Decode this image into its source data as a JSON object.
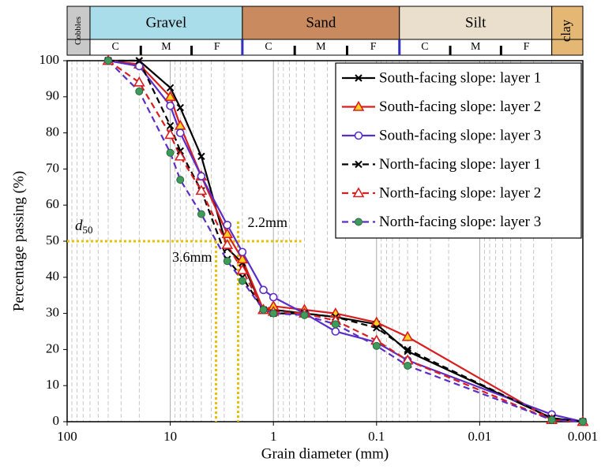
{
  "chart_data": {
    "type": "line",
    "x_label": "Grain diameter (mm)",
    "y_label": "Percentage passing (%)",
    "x": [
      40,
      20,
      10,
      8,
      5,
      2.8,
      2,
      1.25,
      1,
      0.5,
      0.25,
      0.1,
      0.05,
      0.002,
      0.001
    ],
    "series": [
      {
        "name": "South-facing slope: layer 1",
        "color": "#000000",
        "marker": "cross",
        "marker_fill": "none",
        "dashed": false,
        "values": [
          100,
          100,
          92.5,
          87,
          73.5,
          48,
          44,
          31,
          31,
          30,
          29,
          27,
          19.5,
          1,
          0
        ]
      },
      {
        "name": "South-facing slope: layer 2",
        "color": "#d81e1e",
        "marker": "triangle",
        "marker_fill": "#ffd21f",
        "dashed": false,
        "values": [
          100,
          99,
          90,
          82,
          68,
          52,
          45,
          31,
          32,
          31,
          30,
          27.5,
          23.5,
          0.5,
          0
        ]
      },
      {
        "name": "South-facing slope: layer 3",
        "color": "#5a2dc8",
        "marker": "circle",
        "marker_fill": "#ffffff",
        "dashed": false,
        "values": [
          100,
          98.5,
          87.5,
          80,
          68,
          54.5,
          47,
          36.5,
          34.5,
          30,
          25,
          22,
          17,
          2,
          0
        ]
      },
      {
        "name": "North-facing slope: layer 1",
        "color": "#000000",
        "marker": "cross",
        "marker_fill": "none",
        "dashed": true,
        "values": [
          100,
          100,
          82,
          75,
          64,
          45,
          40,
          31,
          30,
          30,
          29,
          26,
          20,
          1,
          0
        ]
      },
      {
        "name": "North-facing slope: layer 2",
        "color": "#d81e1e",
        "marker": "triangle",
        "marker_fill": "#ffffff",
        "dashed": true,
        "values": [
          100,
          94,
          79.5,
          73.5,
          64,
          49,
          42,
          31,
          30.5,
          30,
          28,
          22.5,
          17,
          0.5,
          0
        ]
      },
      {
        "name": "North-facing slope: layer 3",
        "color": "#5a2dc8",
        "marker": "circle",
        "marker_fill": "#3f9a5c",
        "dashed": true,
        "values": [
          100,
          91.5,
          74.5,
          67,
          57.5,
          44.5,
          39,
          31,
          30,
          29.5,
          27,
          21,
          15.5,
          0.5,
          0
        ]
      }
    ],
    "xlim": [
      100,
      0.001
    ],
    "ylim": [
      0,
      100
    ],
    "x_log": true,
    "xticks": [
      100,
      10,
      1,
      0.1,
      0.01,
      0.001
    ],
    "x_minor_ticks": [
      90,
      80,
      70,
      60,
      50,
      40,
      30,
      20,
      9,
      8,
      7,
      6,
      5,
      4,
      3,
      2,
      0.9,
      0.8,
      0.7,
      0.6,
      0.5,
      0.4,
      0.3,
      0.2,
      0.09,
      0.08,
      0.07,
      0.06,
      0.05,
      0.04,
      0.03,
      0.02,
      0.009,
      0.008,
      0.007,
      0.006,
      0.005,
      0.004,
      0.003,
      0.002
    ],
    "yticks": [
      0,
      10,
      20,
      30,
      40,
      50,
      60,
      70,
      80,
      90,
      100
    ],
    "grid": true,
    "legend": "upper right",
    "soil_classes": [
      {
        "name": "Cobbles",
        "from": 100,
        "to": 60,
        "color": "#c9c9c9",
        "vertical": true
      },
      {
        "name": "Gravel",
        "from": 60,
        "to": 2,
        "color": "#a9dde9",
        "subdivisions": [
          "C",
          "M",
          "F"
        ]
      },
      {
        "name": "Sand",
        "from": 2,
        "to": 0.06,
        "color": "#c98a5f",
        "subdivisions": [
          "C",
          "M",
          "F"
        ]
      },
      {
        "name": "Silt",
        "from": 0.06,
        "to": 0.002,
        "color": "#e9dfcc",
        "subdivisions": [
          "C",
          "M",
          "F"
        ]
      },
      {
        "name": "clay",
        "from": 0.002,
        "to": 0.001,
        "color": "#e4b874",
        "vertical": true
      }
    ],
    "d50": {
      "label": "d",
      "subscript": "50",
      "value": 50,
      "diameters": [
        {
          "value": 3.6,
          "label": "3.6mm"
        },
        {
          "value": 2.2,
          "label": "2.2mm"
        }
      ],
      "color": "#e8c000"
    }
  }
}
